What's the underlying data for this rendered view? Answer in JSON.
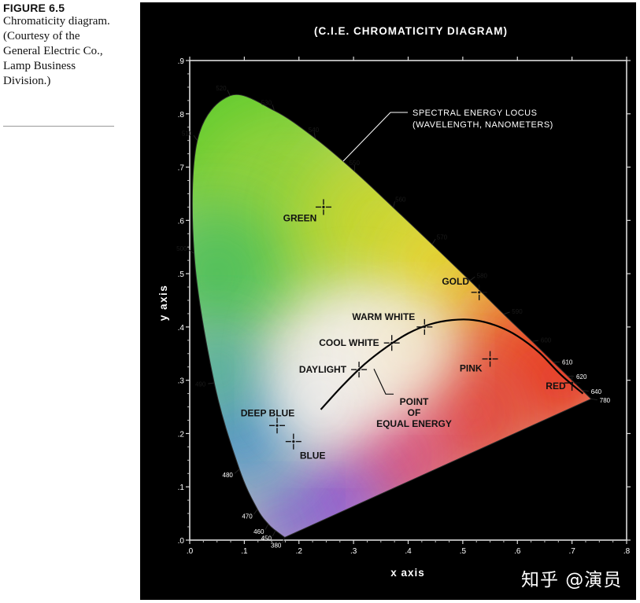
{
  "caption": {
    "figure_label": "FIGURE 6.5",
    "text": "Chromaticity diagram. (Courtesy of the General Electric Co., Lamp Business Division.)"
  },
  "watermark": "知乎 @演员",
  "colors": {
    "background": "#000000",
    "ink": "#ffffff",
    "page": "#ffffff"
  },
  "chart_data": {
    "type": "scatter",
    "title": "(C.I.E. CHROMATICITY  DIAGRAM)",
    "xlabel": "x axis",
    "ylabel": "y axis",
    "xlim": [
      0,
      0.8
    ],
    "ylim": [
      0,
      0.9
    ],
    "grid": false,
    "x_ticks": [
      ".0",
      ".1",
      ".2",
      ".3",
      ".4",
      ".5",
      ".6",
      ".7",
      ".8"
    ],
    "y_ticks": [
      ".0",
      ".1",
      ".2",
      ".3",
      ".4",
      ".5",
      ".6",
      ".7",
      ".8",
      ".9"
    ],
    "locus_label": "SPECTRAL ENERGY LOCUS\n(WAVELENGTH, NANOMETERS)",
    "spectral_locus": [
      {
        "nm": "380",
        "x": 0.174,
        "y": 0.005
      },
      {
        "nm": "450",
        "x": 0.157,
        "y": 0.018
      },
      {
        "nm": "460",
        "x": 0.144,
        "y": 0.03
      },
      {
        "nm": "470",
        "x": 0.124,
        "y": 0.058
      },
      {
        "nm": "480",
        "x": 0.091,
        "y": 0.133
      },
      {
        "nm": "490",
        "x": 0.045,
        "y": 0.295
      },
      {
        "nm": "500",
        "x": 0.008,
        "y": 0.538
      },
      {
        "nm": "510",
        "x": 0.014,
        "y": 0.75
      },
      {
        "nm": "520",
        "x": 0.074,
        "y": 0.834
      },
      {
        "nm": "530",
        "x": 0.155,
        "y": 0.806
      },
      {
        "nm": "540",
        "x": 0.23,
        "y": 0.754
      },
      {
        "nm": "550",
        "x": 0.302,
        "y": 0.692
      },
      {
        "nm": "560",
        "x": 0.373,
        "y": 0.624
      },
      {
        "nm": "570",
        "x": 0.444,
        "y": 0.555
      },
      {
        "nm": "580",
        "x": 0.513,
        "y": 0.487
      },
      {
        "nm": "590",
        "x": 0.575,
        "y": 0.424
      },
      {
        "nm": "600",
        "x": 0.627,
        "y": 0.373
      },
      {
        "nm": "610",
        "x": 0.666,
        "y": 0.334
      },
      {
        "nm": "620",
        "x": 0.692,
        "y": 0.308
      },
      {
        "nm": "640",
        "x": 0.719,
        "y": 0.281
      },
      {
        "nm": "780",
        "x": 0.735,
        "y": 0.265
      }
    ],
    "points": [
      {
        "label": "GREEN",
        "x": 0.245,
        "y": 0.625
      },
      {
        "label": "GOLD",
        "x": 0.53,
        "y": 0.465
      },
      {
        "label": "WARM WHITE",
        "x": 0.43,
        "y": 0.4
      },
      {
        "label": "COOL WHITE",
        "x": 0.37,
        "y": 0.37
      },
      {
        "label": "DAYLIGHT",
        "x": 0.31,
        "y": 0.32
      },
      {
        "label": "PINK",
        "x": 0.55,
        "y": 0.34
      },
      {
        "label": "RED",
        "x": 0.7,
        "y": 0.295
      },
      {
        "label": "DEEP BLUE",
        "x": 0.16,
        "y": 0.215
      },
      {
        "label": "BLUE",
        "x": 0.19,
        "y": 0.185
      }
    ],
    "equal_energy_label": "POINT\nOF\nEQUAL ENERGY",
    "equal_energy_point": {
      "x": 0.333,
      "y": 0.333
    },
    "blackbody_curve": [
      {
        "x": 0.24,
        "y": 0.245
      },
      {
        "x": 0.28,
        "y": 0.29
      },
      {
        "x": 0.32,
        "y": 0.33
      },
      {
        "x": 0.36,
        "y": 0.362
      },
      {
        "x": 0.4,
        "y": 0.388
      },
      {
        "x": 0.44,
        "y": 0.405
      },
      {
        "x": 0.48,
        "y": 0.413
      },
      {
        "x": 0.52,
        "y": 0.413
      },
      {
        "x": 0.56,
        "y": 0.403
      },
      {
        "x": 0.6,
        "y": 0.383
      },
      {
        "x": 0.64,
        "y": 0.352
      },
      {
        "x": 0.68,
        "y": 0.31
      },
      {
        "x": 0.72,
        "y": 0.275
      }
    ]
  }
}
